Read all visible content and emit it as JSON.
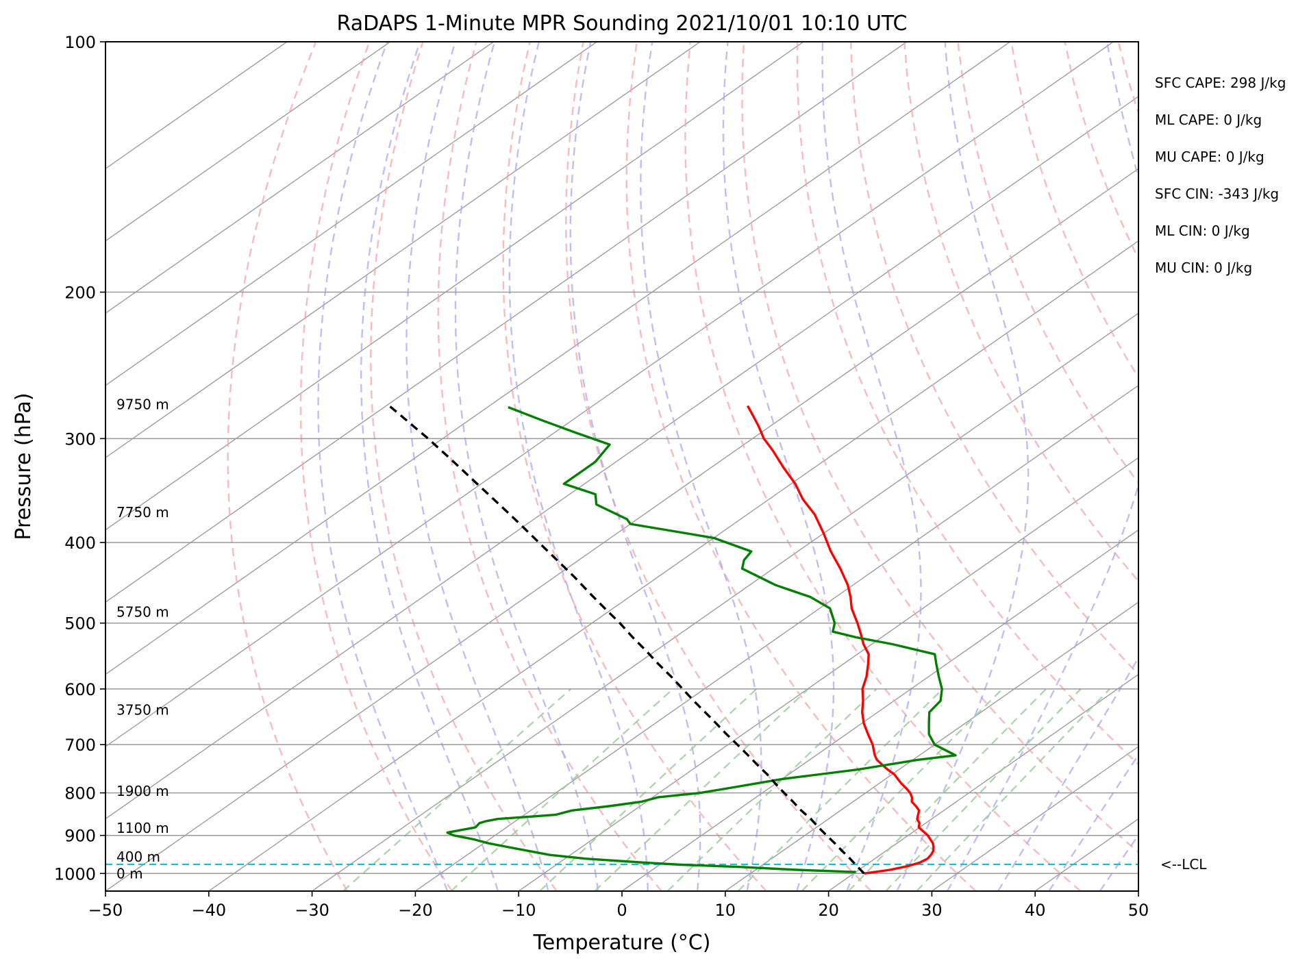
{
  "chart_data": {
    "type": "line",
    "chart_kind": "skew-t log-p",
    "title": "RaDAPS 1-Minute MPR Sounding 2021/10/01 10:10 UTC",
    "xlabel": "Temperature (°C)",
    "ylabel": "Pressure (hPa)",
    "xlim": [
      -50,
      50
    ],
    "ylim": [
      1050,
      100
    ],
    "y_scale": "log",
    "x_ticks": [
      -50,
      -40,
      -30,
      -20,
      -10,
      0,
      10,
      20,
      30,
      40,
      50
    ],
    "x_tick_labels": [
      "−50",
      "−40",
      "−30",
      "−20",
      "−10",
      "0",
      "10",
      "20",
      "30",
      "40",
      "50"
    ],
    "y_ticks": [
      100,
      200,
      300,
      400,
      500,
      600,
      700,
      800,
      900,
      1000
    ],
    "y_tick_labels": [
      "100",
      "200",
      "300",
      "400",
      "500",
      "600",
      "700",
      "800",
      "900",
      "1000"
    ],
    "grid": true,
    "colors": {
      "temperature": "#ff0000",
      "dewpoint": "#008000",
      "parcel": "#000000",
      "lcl": "#17becf",
      "dry_adiabat": "#f4a4a4",
      "moist_adiabat": "#a8a8f0",
      "mixing_ratio": "#98cc98",
      "isotherm": "#8c8c8c",
      "grid": "#999999"
    },
    "series": [
      {
        "name": "temperature",
        "style": "solid",
        "pressure": [
          1000,
          990,
          980,
          970,
          960,
          950,
          940,
          930,
          920,
          910,
          900,
          890,
          880,
          870,
          860,
          850,
          840,
          830,
          820,
          810,
          800,
          790,
          780,
          770,
          760,
          750,
          740,
          730,
          720,
          700,
          680,
          660,
          640,
          620,
          600,
          580,
          560,
          545,
          530,
          515,
          500,
          480,
          465,
          450,
          430,
          410,
          390,
          370,
          355,
          340,
          325,
          310,
          300,
          290,
          280,
          274
        ],
        "temperature": [
          21.0,
          23.0,
          24.2,
          24.9,
          25.1,
          24.9,
          24.6,
          24.1,
          23.5,
          22.7,
          21.9,
          20.9,
          19.9,
          19.4,
          18.6,
          18.1,
          17.6,
          16.7,
          15.7,
          15.1,
          14.3,
          13.3,
          12.2,
          11.2,
          10.2,
          8.9,
          7.7,
          6.5,
          5.6,
          4.0,
          2.1,
          0.2,
          -1.5,
          -3.0,
          -4.7,
          -6.0,
          -7.6,
          -8.9,
          -10.8,
          -12.5,
          -14.3,
          -16.9,
          -18.6,
          -20.5,
          -23.5,
          -26.8,
          -30.0,
          -33.5,
          -36.7,
          -39.6,
          -43.0,
          -46.4,
          -48.9,
          -51.1,
          -53.5,
          -55.0
        ]
      },
      {
        "name": "dewpoint",
        "style": "solid",
        "pressure": [
          996,
          990,
          982,
          976,
          970,
          965,
          960,
          950,
          940,
          930,
          920,
          910,
          900,
          893,
          880,
          870,
          865,
          860,
          850,
          840,
          830,
          820,
          810,
          800,
          790,
          780,
          770,
          760,
          750,
          730,
          721,
          700,
          680,
          660,
          640,
          620,
          600,
          580,
          560,
          545,
          530,
          520,
          512,
          500,
          480,
          465,
          450,
          430,
          420,
          410,
          395,
          380,
          375,
          360,
          350,
          340,
          330,
          320,
          305,
          295,
          285,
          275
        ],
        "temperature": [
          20.0,
          14.0,
          8.0,
          2.0,
          -2.0,
          -5.0,
          -8.0,
          -12.0,
          -14.5,
          -17.0,
          -19.5,
          -21.5,
          -24.0,
          -25.0,
          -23.0,
          -23.2,
          -22.8,
          -22.0,
          -17.0,
          -16.0,
          -13.0,
          -10.5,
          -9.5,
          -6.0,
          -4.0,
          -2.0,
          0.0,
          3.0,
          6.0,
          10.5,
          13.5,
          10.0,
          8.0,
          6.5,
          5.0,
          4.5,
          3.0,
          1.0,
          -1.0,
          -2.5,
          -8.0,
          -12.5,
          -15.5,
          -16.5,
          -19.0,
          -22.5,
          -27.5,
          -33.0,
          -34.0,
          -34.5,
          -40.0,
          -50.0,
          -51.0,
          -56.0,
          -57.5,
          -62.0,
          -62.0,
          -62.0,
          -63.0,
          -68.0,
          -73.0,
          -78.0
        ]
      },
      {
        "name": "parcel",
        "style": "dashed",
        "pressure": [
          1000,
          980,
          960,
          940,
          920,
          900,
          880,
          860,
          840,
          820,
          800,
          780,
          760,
          740,
          720,
          700,
          680,
          660,
          640,
          620,
          600,
          580,
          560,
          540,
          520,
          500,
          480,
          460,
          440,
          420,
          400,
          380,
          360,
          340,
          320,
          300,
          290,
          280,
          274
        ],
        "temperature": [
          21.0,
          19.3,
          17.6,
          15.8,
          14.0,
          12.1,
          10.2,
          8.3,
          6.2,
          4.2,
          2.1,
          0.0,
          -2.1,
          -4.4,
          -6.7,
          -9.1,
          -11.6,
          -14.1,
          -16.7,
          -19.4,
          -22.1,
          -24.9,
          -27.9,
          -30.9,
          -34.1,
          -37.3,
          -40.8,
          -44.4,
          -48.1,
          -52.1,
          -56.3,
          -60.7,
          -65.4,
          -70.4,
          -75.7,
          -81.4,
          -84.5,
          -87.7,
          -89.7
        ]
      }
    ],
    "lcl_pressure": 975,
    "lcl_label": "<--LCL",
    "height_labels": [
      {
        "text": "0 m",
        "pressure": 1000
      },
      {
        "text": "400 m",
        "pressure": 955
      },
      {
        "text": "1100 m",
        "pressure": 882
      },
      {
        "text": "1900 m",
        "pressure": 796
      },
      {
        "text": "3750 m",
        "pressure": 636
      },
      {
        "text": "5750 m",
        "pressure": 485
      },
      {
        "text": "7750 m",
        "pressure": 368
      },
      {
        "text": "9750 m",
        "pressure": 273
      }
    ],
    "annotations": [
      "SFC CAPE: 298 J/kg",
      "ML CAPE: 0 J/kg",
      "MU CAPE: 0 J/kg",
      "SFC CIN: -343 J/kg",
      "ML CIN: 0 J/kg",
      "MU CIN: 0 J/kg"
    ]
  }
}
